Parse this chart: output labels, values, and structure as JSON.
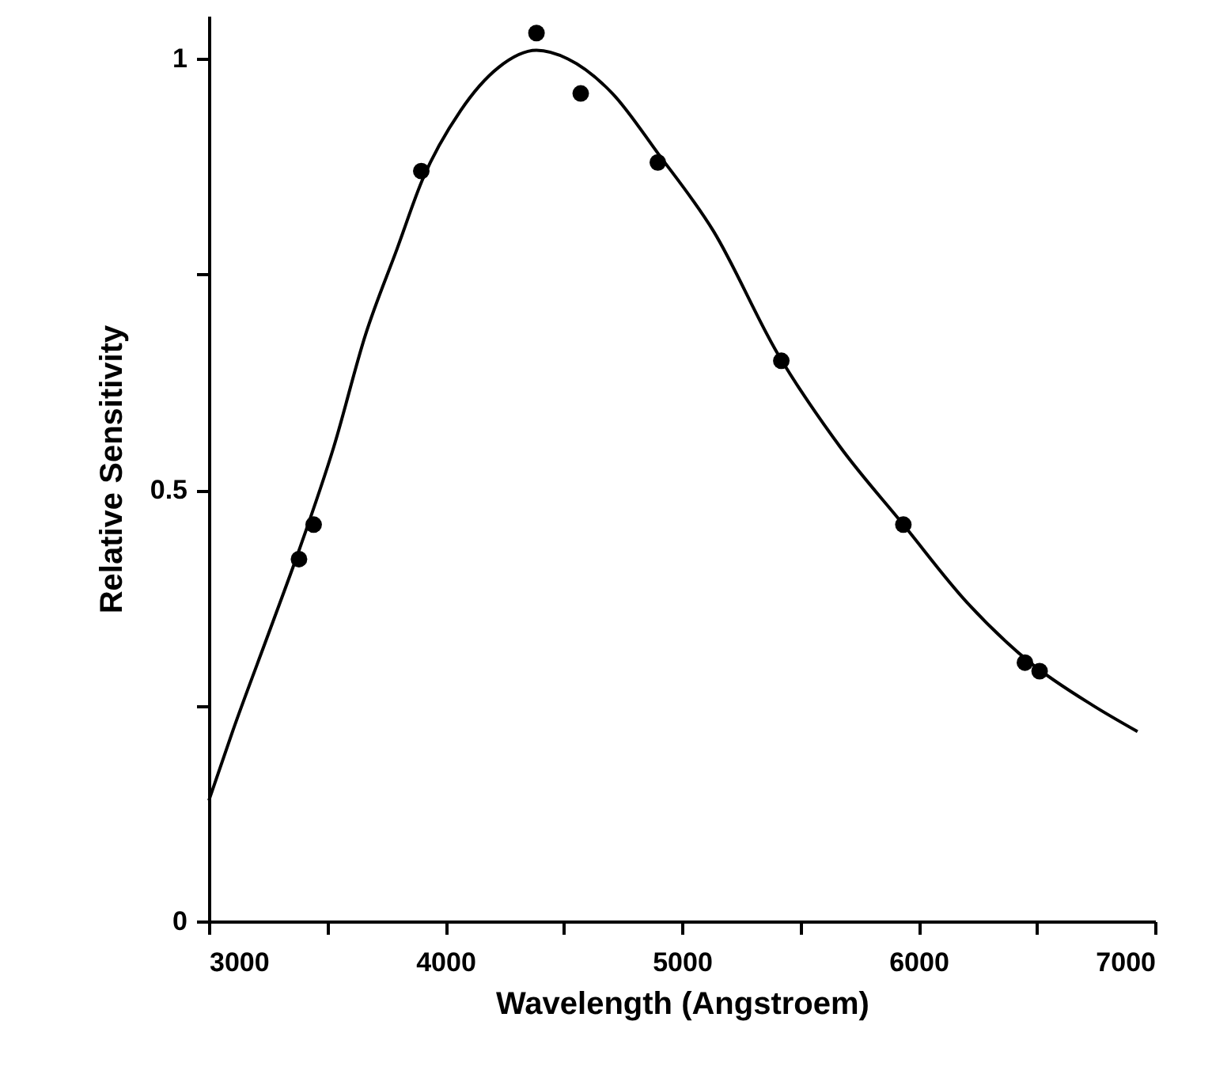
{
  "chart_data": {
    "type": "line",
    "xlabel": "Wavelength (Angstroem)",
    "ylabel": "Relative Sensitivity",
    "xlim": [
      3000,
      7000
    ],
    "ylim": [
      0,
      1.05
    ],
    "xticks": [
      3000,
      {
        "value": 3500,
        "label": null
      },
      4000,
      {
        "value": 4500,
        "label": null
      },
      5000,
      {
        "value": 5500,
        "label": null
      },
      6000,
      {
        "value": 6500,
        "label": null
      },
      7000
    ],
    "yticks": [
      0,
      {
        "value": 0.25,
        "label": null
      },
      0.5,
      {
        "value": 0.75,
        "label": null
      },
      1
    ],
    "grid": false,
    "series": [
      {
        "color": "#000000",
        "marker": "none",
        "line_style": "solid",
        "x": [
          3000,
          3100,
          3261,
          3381,
          3528,
          3662,
          3796,
          3903,
          4064,
          4224,
          4385,
          4518,
          4706,
          4900,
          5134,
          5401,
          5669,
          5936,
          6204,
          6472,
          6739,
          6926
        ],
        "values": [
          0.14,
          0.22,
          0.34,
          0.43,
          0.55,
          0.68,
          0.78,
          0.86,
          0.94,
          0.99,
          1.01,
          1.0,
          0.96,
          0.89,
          0.8,
          0.66,
          0.55,
          0.46,
          0.37,
          0.3,
          0.25,
          0.22
        ]
      },
      {
        "type": "scatter",
        "color": "#000000",
        "marker": "circle",
        "x": [
          3381,
          3443,
          3898,
          4385,
          4572,
          4898,
          5420,
          5936,
          6450,
          6512
        ],
        "values": [
          0.42,
          0.46,
          0.87,
          1.03,
          0.96,
          0.88,
          0.65,
          0.46,
          0.3,
          0.29
        ]
      }
    ]
  }
}
